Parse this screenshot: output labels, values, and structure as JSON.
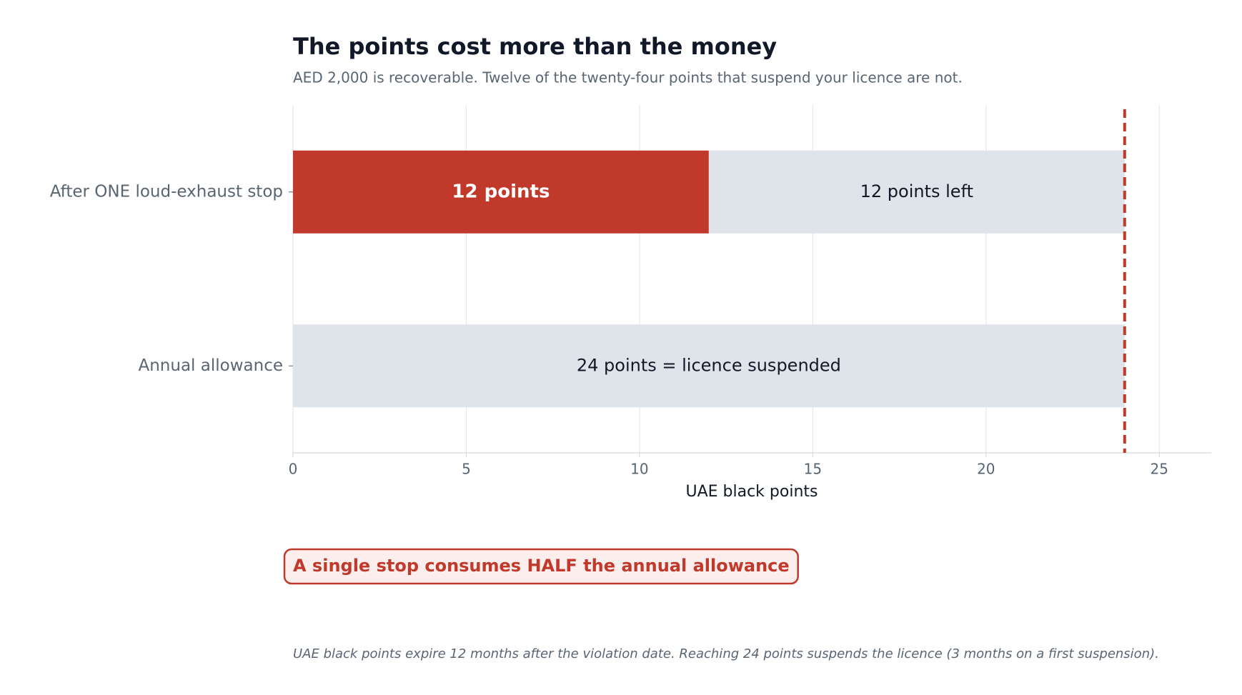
{
  "chart_data": {
    "type": "stacked-barh",
    "title": "The points cost more than the money",
    "subtitle": "AED 2,000 is recoverable. Twelve of the twenty-four points that suspend your licence are not.",
    "categories": [
      "After ONE loud-exhaust stop",
      "Annual allowance"
    ],
    "series": [
      {
        "color": "#c0392b",
        "values": [
          12,
          null
        ],
        "value_labels": [
          "12 points",
          null
        ]
      },
      {
        "color": "#dfe3ea",
        "values": [
          12,
          24
        ],
        "value_labels": [
          "12 points left",
          "24 points = licence suspended"
        ]
      }
    ],
    "xlabel": "UAE black points",
    "xlim": [
      0,
      26.5
    ],
    "xticks": [
      0,
      5,
      10,
      15,
      20,
      25
    ],
    "grid": true,
    "reference_line": {
      "value": 24,
      "color": "#c0392b"
    },
    "annotation": "A single stop consumes HALF the annual allowance",
    "footnote": "UAE black points expire 12 months after the violation date. Reaching 24 points suspends the licence (3 months on a first suspension)."
  }
}
